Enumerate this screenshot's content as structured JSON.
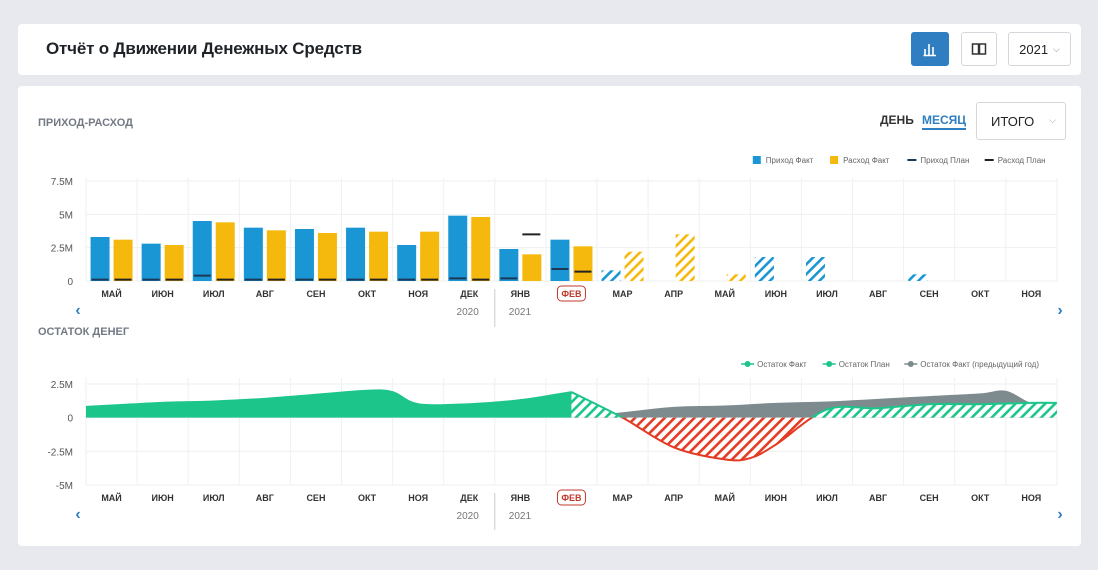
{
  "header": {
    "title": "Отчёт о Движении Денежных Средств",
    "year": "2021"
  },
  "controls": {
    "day": "ДЕНЬ",
    "month": "МЕСЯЦ",
    "total": "ИТОГО"
  },
  "colors": {
    "income": "#1a96d4",
    "expense": "#f5b80c",
    "balance_fact": "#1cc58a",
    "balance_prev": "#7d8b8f",
    "negative": "#e53a23",
    "plan_line": "#1d3857",
    "plan_expense": "#222222",
    "current_month": "#c0392b"
  },
  "sections": {
    "income_expense": "ПРИХОД-РАСХОД",
    "balance": "ОСТАТОК ДЕНЕГ"
  },
  "chart_data": [
    {
      "type": "bar",
      "title": "ПРИХОД-РАСХОД",
      "categories": [
        "МАЙ",
        "ИЮН",
        "ИЮЛ",
        "АВГ",
        "СЕН",
        "ОКТ",
        "НОЯ",
        "ДЕК",
        "ЯНВ",
        "ФЕВ",
        "МАР",
        "АПР",
        "МАЙ",
        "ИЮН",
        "ИЮЛ",
        "АВГ",
        "СЕН",
        "ОКТ",
        "НОЯ"
      ],
      "year_labels": [
        {
          "label": "2020",
          "after_index": 7
        },
        {
          "label": "2021",
          "at_index": 8
        }
      ],
      "current_index": 9,
      "fact_count": 10,
      "y_ticks": [
        "7.5M",
        "5M",
        "2.5M",
        "0"
      ],
      "ylim": [
        0,
        7.5
      ],
      "legend_position": "top-right",
      "series": [
        {
          "name": "Приход Факт",
          "values": [
            3.3,
            2.8,
            4.5,
            4.0,
            3.9,
            4.0,
            2.7,
            4.9,
            2.4,
            3.1,
            0.8,
            0,
            0,
            1.8,
            1.8,
            0,
            0.5,
            0,
            0
          ]
        },
        {
          "name": "Расход Факт",
          "values": [
            3.1,
            2.7,
            4.4,
            3.8,
            3.6,
            3.7,
            3.7,
            4.8,
            2.0,
            2.6,
            2.2,
            3.5,
            0.5,
            0,
            0,
            0,
            0,
            0,
            0
          ]
        },
        {
          "name": "Приход План",
          "values": [
            0.1,
            0.1,
            0.4,
            0.1,
            0.1,
            0.1,
            0.1,
            0.2,
            0.2,
            0.9,
            null,
            null,
            null,
            null,
            null,
            null,
            null,
            null,
            null
          ]
        },
        {
          "name": "Расход План",
          "values": [
            0.1,
            0.1,
            0.1,
            0.1,
            0.1,
            0.1,
            0.1,
            0.1,
            3.5,
            0.7,
            null,
            null,
            null,
            null,
            null,
            null,
            null,
            null,
            null
          ]
        }
      ]
    },
    {
      "type": "area",
      "title": "ОСТАТОК ДЕНЕГ",
      "categories": [
        "МАЙ",
        "ИЮН",
        "ИЮЛ",
        "АВГ",
        "СЕН",
        "ОКТ",
        "НОЯ",
        "ДЕК",
        "ЯНВ",
        "ФЕВ",
        "МАР",
        "АПР",
        "МАЙ",
        "ИЮН",
        "ИЮЛ",
        "АВГ",
        "СЕН",
        "ОКТ",
        "НОЯ"
      ],
      "year_labels": [
        {
          "label": "2020",
          "after_index": 7
        },
        {
          "label": "2021",
          "at_index": 8
        }
      ],
      "current_index": 9,
      "y_ticks": [
        "2.5M",
        "0",
        "-2.5M",
        "-5M"
      ],
      "ylim": [
        -5,
        2.5
      ],
      "legend_position": "top-right",
      "series": [
        {
          "name": "Остаток Факт",
          "x": [
            -0.5,
            0,
            1,
            2,
            3,
            4,
            5,
            5.5,
            6,
            7,
            8,
            9
          ],
          "values": [
            0.8,
            0.9,
            1.1,
            1.2,
            1.4,
            1.7,
            2.0,
            1.9,
            1.0,
            1.0,
            1.3,
            1.9
          ]
        },
        {
          "name": "Остаток План",
          "x": [
            9,
            10,
            11,
            12,
            12.5,
            13,
            14,
            15,
            16,
            17,
            18,
            18.5
          ],
          "values": [
            1.9,
            0,
            -2.2,
            -3.1,
            -3.0,
            -2.0,
            0.6,
            0.7,
            1.0,
            1.0,
            1.1,
            1.1
          ]
        },
        {
          "name": "Остаток Факт (предыдущий год)",
          "x": [
            9,
            10,
            11,
            12,
            13,
            14,
            15,
            16,
            17,
            17.5,
            18,
            18.5
          ],
          "values": [
            0,
            0.4,
            0.8,
            0.9,
            1.1,
            1.2,
            1.4,
            1.6,
            1.8,
            2.0,
            1.1,
            1.0
          ]
        }
      ]
    }
  ]
}
